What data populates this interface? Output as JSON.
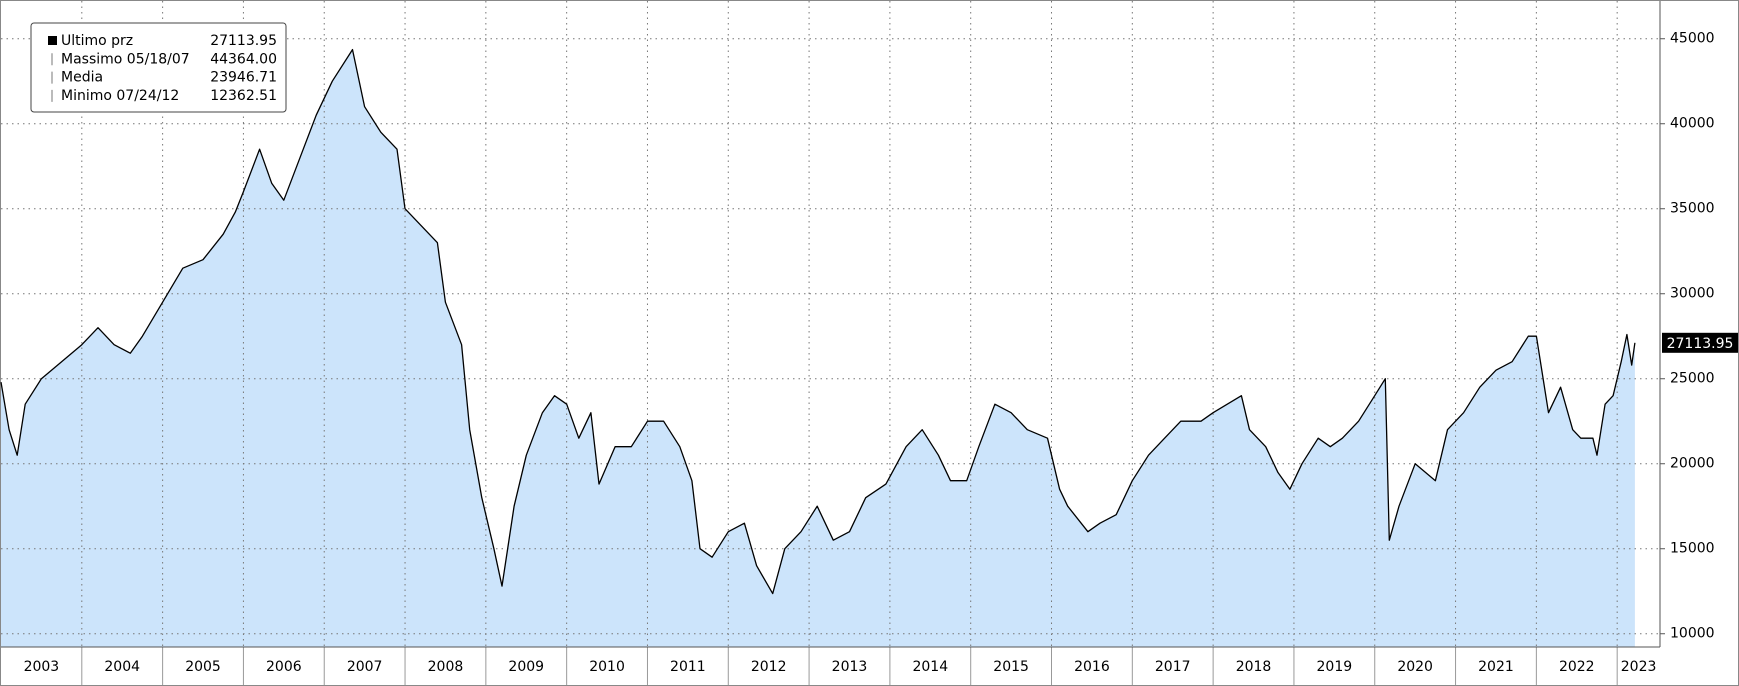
{
  "chart_data": {
    "type": "area",
    "series": [
      {
        "name": "Ultimo prz",
        "color": "#000000",
        "fill": "#cce4fb",
        "x": [
          2003.0,
          2003.1,
          2003.2,
          2003.3,
          2003.5,
          2003.75,
          2004.0,
          2004.2,
          2004.4,
          2004.6,
          2004.75,
          2005.0,
          2005.25,
          2005.5,
          2005.75,
          2005.9,
          2006.0,
          2006.2,
          2006.35,
          2006.5,
          2006.7,
          2006.9,
          2007.1,
          2007.35,
          2007.5,
          2007.7,
          2007.9,
          2008.0,
          2008.2,
          2008.4,
          2008.5,
          2008.7,
          2008.8,
          2008.95,
          2009.1,
          2009.2,
          2009.35,
          2009.5,
          2009.7,
          2009.85,
          2010.0,
          2010.15,
          2010.3,
          2010.4,
          2010.6,
          2010.8,
          2011.0,
          2011.2,
          2011.4,
          2011.55,
          2011.65,
          2011.8,
          2012.0,
          2012.2,
          2012.35,
          2012.55,
          2012.7,
          2012.9,
          2013.1,
          2013.3,
          2013.5,
          2013.7,
          2013.95,
          2014.2,
          2014.4,
          2014.6,
          2014.75,
          2014.95,
          2015.1,
          2015.3,
          2015.5,
          2015.7,
          2015.95,
          2016.1,
          2016.2,
          2016.45,
          2016.6,
          2016.8,
          2017.0,
          2017.2,
          2017.4,
          2017.6,
          2017.85,
          2018.0,
          2018.35,
          2018.45,
          2018.65,
          2018.8,
          2018.95,
          2019.1,
          2019.3,
          2019.45,
          2019.6,
          2019.8,
          2020.0,
          2020.13,
          2020.18,
          2020.3,
          2020.5,
          2020.75,
          2020.9,
          2021.1,
          2021.3,
          2021.5,
          2021.7,
          2021.9,
          2022.0,
          2022.15,
          2022.3,
          2022.45,
          2022.55,
          2022.7,
          2022.75,
          2022.85,
          2022.95,
          2023.05,
          2023.12,
          2023.18,
          2023.22
        ],
        "values": [
          24800,
          22000,
          20500,
          23500,
          25000,
          26000,
          27000,
          28000,
          27000,
          26500,
          27500,
          29500,
          31500,
          32000,
          33500,
          34800,
          36000,
          38500,
          36500,
          35500,
          38000,
          40500,
          42500,
          44364,
          41000,
          39500,
          38500,
          35000,
          34000,
          33000,
          29500,
          27000,
          22000,
          18000,
          15000,
          12800,
          17500,
          20500,
          23000,
          24000,
          23500,
          21500,
          23000,
          18800,
          21000,
          21000,
          22500,
          22500,
          21000,
          19000,
          15000,
          14500,
          16000,
          16500,
          14000,
          12362.51,
          15000,
          16000,
          17500,
          15500,
          16000,
          18000,
          18800,
          21000,
          22000,
          20500,
          19000,
          19000,
          21000,
          23500,
          23000,
          22000,
          21500,
          18500,
          17500,
          16000,
          16500,
          17000,
          19000,
          20500,
          21500,
          22500,
          22500,
          23000,
          24000,
          22000,
          21000,
          19500,
          18500,
          20000,
          21500,
          21000,
          21500,
          22500,
          24000,
          25000,
          15500,
          17500,
          20000,
          19000,
          22000,
          23000,
          24500,
          25500,
          26000,
          27500,
          27500,
          23000,
          24500,
          22000,
          21500,
          21500,
          20500,
          23500,
          24000,
          26000,
          27600,
          25800,
          27113.95
        ]
      }
    ],
    "stats": [
      {
        "name": "Ultimo prz",
        "value": "27113.95"
      },
      {
        "name": "Massimo 05/18/07",
        "value": "44364.00"
      },
      {
        "name": "Media",
        "value": "23946.71"
      },
      {
        "name": "Minimo 07/24/12",
        "value": "12362.51"
      }
    ],
    "legend": "upper left",
    "xlim": [
      2003.0,
      2023.53
    ],
    "xticks": [
      2003,
      2004,
      2005,
      2006,
      2007,
      2008,
      2009,
      2010,
      2011,
      2012,
      2013,
      2014,
      2015,
      2016,
      2017,
      2018,
      2019,
      2020,
      2021,
      2022,
      2023
    ],
    "ylim": [
      9220,
      47220
    ],
    "yticks": [
      10000,
      15000,
      20000,
      25000,
      30000,
      35000,
      40000,
      45000
    ],
    "grid": true
  }
}
